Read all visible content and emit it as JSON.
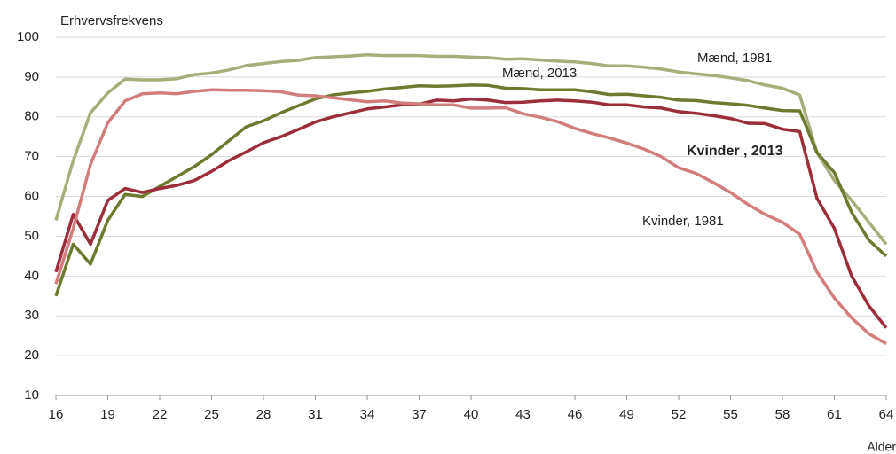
{
  "chart_data": {
    "type": "line",
    "y_label": "Erhvervsfrekvens",
    "x_label": "Alder",
    "x": [
      16,
      17,
      18,
      19,
      20,
      21,
      22,
      23,
      24,
      25,
      26,
      27,
      28,
      29,
      30,
      31,
      32,
      33,
      34,
      35,
      36,
      37,
      38,
      39,
      40,
      41,
      42,
      43,
      44,
      45,
      46,
      47,
      48,
      49,
      50,
      51,
      52,
      53,
      54,
      55,
      56,
      57,
      58,
      59,
      60,
      61,
      62,
      63,
      64
    ],
    "xlim": [
      16,
      64
    ],
    "xticks": [
      16,
      19,
      22,
      25,
      28,
      31,
      34,
      37,
      40,
      43,
      46,
      49,
      52,
      55,
      58,
      61,
      64
    ],
    "ylim": [
      10,
      100
    ],
    "yticks": [
      10,
      20,
      30,
      40,
      50,
      60,
      70,
      80,
      90,
      100
    ],
    "grid": true,
    "series": [
      {
        "name": "Mænd, 1981",
        "color": "#a9ad7c",
        "values": [
          54,
          69,
          81,
          86,
          89.5,
          89.3,
          89.3,
          89.6,
          90.6,
          91,
          91.8,
          92.9,
          93.4,
          93.9,
          94.2,
          94.9,
          95.1,
          95.3,
          95.6,
          95.4,
          95.4,
          95.4,
          95.2,
          95.2,
          95,
          94.9,
          94.5,
          94.6,
          94.3,
          94,
          93.8,
          93.4,
          92.8,
          92.8,
          92.5,
          92,
          91.3,
          90.8,
          90.4,
          89.8,
          89.1,
          88,
          87.2,
          85.5,
          71,
          64,
          59,
          53.5,
          48
        ]
      },
      {
        "name": "Mænd, 2013",
        "color": "#6b7b2f",
        "values": [
          35,
          48,
          43,
          54,
          60.5,
          60,
          62.5,
          65,
          67.5,
          70.5,
          74,
          77.5,
          79,
          81,
          82.8,
          84.5,
          85.5,
          86,
          86.4,
          87,
          87.4,
          87.8,
          87.7,
          87.8,
          88,
          87.9,
          87.2,
          87.1,
          86.8,
          86.8,
          86.8,
          86.3,
          85.6,
          85.7,
          85.3,
          84.9,
          84.2,
          84.1,
          83.6,
          83.3,
          82.9,
          82.2,
          81.6,
          81.5,
          71,
          66,
          56,
          49,
          45
        ]
      },
      {
        "name": "Kvinder , 2013",
        "color": "#9c2d3b",
        "values": [
          41,
          55.5,
          48,
          59,
          62,
          61,
          62,
          62.8,
          64,
          66.3,
          69,
          71.2,
          73.5,
          75,
          76.8,
          78.7,
          80,
          81,
          82,
          82.5,
          83,
          83.2,
          84.2,
          84,
          84.5,
          84.2,
          83.6,
          83.7,
          84,
          84.2,
          84,
          83.7,
          83,
          83,
          82.5,
          82.2,
          81.3,
          80.9,
          80.3,
          79.6,
          78.4,
          78.3,
          76.9,
          76.3,
          59.5,
          52,
          40,
          32.5,
          27
        ]
      },
      {
        "name": "Kvinder, 1981",
        "color": "#d27d7d",
        "values": [
          38,
          52,
          68,
          78.5,
          84,
          85.8,
          86,
          85.8,
          86.4,
          86.8,
          86.7,
          86.7,
          86.6,
          86.3,
          85.5,
          85.3,
          84.8,
          84.3,
          83.8,
          84,
          83.5,
          83.3,
          83,
          83,
          82.2,
          82.2,
          82.3,
          80.8,
          79.9,
          78.8,
          77.1,
          75.8,
          74.7,
          73.4,
          71.9,
          70,
          67.2,
          65.8,
          63.5,
          61,
          58,
          55.5,
          53.5,
          50.5,
          41,
          34.5,
          29.5,
          25.5,
          23
        ]
      }
    ]
  }
}
